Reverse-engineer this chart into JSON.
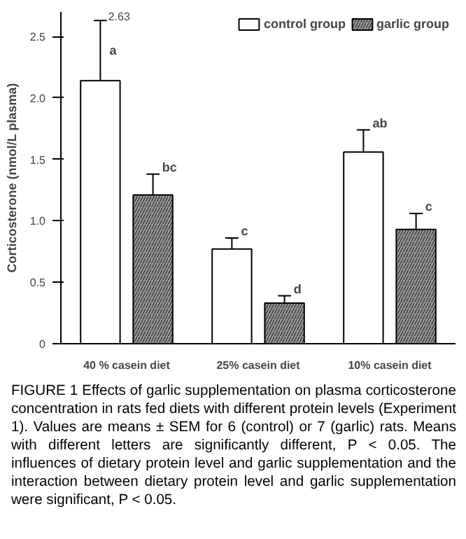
{
  "chart_data": {
    "type": "bar",
    "ylabel": "Corticosterone (nmol/L plasma)",
    "categories": [
      "40 % casein diet",
      "25% casein diet",
      "10% casein diet"
    ],
    "series": [
      {
        "name": "control group",
        "color": "#ffffff",
        "values": [
          2.14,
          0.77,
          1.56
        ],
        "errors": [
          [
            2.14,
            2.63
          ],
          [
            0.77,
            0.86
          ],
          [
            1.56,
            1.74
          ]
        ],
        "value_labels": [
          "a",
          "c",
          "ab"
        ]
      },
      {
        "name": "garlic group",
        "color": "#9a9a9a",
        "values": [
          1.21,
          0.33,
          0.93
        ],
        "errors": [
          [
            1.21,
            1.38
          ],
          [
            0.33,
            0.39
          ],
          [
            0.93,
            1.06
          ]
        ],
        "value_labels": [
          "bc",
          "d",
          "c"
        ]
      }
    ],
    "ylim": [
      0,
      2.7
    ],
    "yticks": [
      0,
      0.5,
      {
        "value": 1,
        "label": "1.0"
      },
      1.5,
      {
        "value": 2,
        "label": "2.0"
      },
      2.5
    ],
    "grid": false,
    "legend": "top right",
    "annotations": [
      "2.63",
      "FIGURE 1 Effects of garlic supplementation on plasma corticosterone concentration in rats fed diets with different protein levels (Experiment 1). Values are means ± SEM for 6 (control) or 7 (garlic) rats. Means with different letters are significantly different, P < 0.05. The influences of dietary protein level and garlic supplementation and the interaction between dietary protein level and garlic supplementation were significant, P < 0.05."
    ]
  }
}
